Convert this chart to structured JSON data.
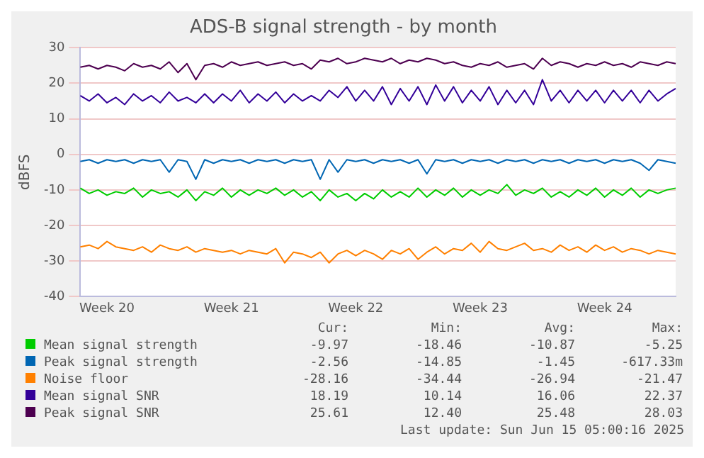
{
  "chart_data": {
    "type": "line",
    "title": "ADS-B signal strength - by month",
    "ylabel": "dBFS",
    "categories": [
      null,
      null,
      null,
      "Week 20",
      null,
      null,
      null,
      null,
      null,
      null,
      null,
      null,
      null,
      null,
      null,
      null,
      null,
      "Week 21",
      null,
      null,
      null,
      null,
      null,
      null,
      null,
      null,
      null,
      null,
      null,
      null,
      null,
      "Week 22",
      null,
      null,
      null,
      null,
      null,
      null,
      null,
      null,
      null,
      null,
      null,
      null,
      null,
      "Week 23",
      null,
      null,
      null,
      null,
      null,
      null,
      null,
      null,
      null,
      null,
      null,
      null,
      null,
      "Week 24",
      null,
      null,
      null,
      null,
      null,
      null,
      null,
      null
    ],
    "ylim": [
      -40,
      30
    ],
    "yticks": [
      -40,
      -30,
      -20,
      -10,
      0,
      10,
      20,
      30
    ],
    "grid": "y",
    "legend": "bottom",
    "marker": "none",
    "line_style": "solid",
    "series": [
      {
        "name": "Mean signal strength",
        "color": "#00cc00",
        "values": [
          -9.5,
          -11,
          -10,
          -11.5,
          -10.5,
          -11,
          -9.5,
          -12,
          -10,
          -11,
          -10.5,
          -12,
          -10,
          -13,
          -10.5,
          -11.5,
          -9.5,
          -12,
          -10,
          -11.5,
          -10,
          -11,
          -9.5,
          -11.5,
          -10,
          -12,
          -10.5,
          -13,
          -10,
          -12,
          -11,
          -13,
          -11,
          -12.5,
          -10,
          -12,
          -10.5,
          -12,
          -9.5,
          -12,
          -10,
          -11.5,
          -9.5,
          -12,
          -10,
          -11.5,
          -10,
          -11,
          -8.5,
          -11.5,
          -10,
          -11,
          -9.5,
          -12,
          -10.5,
          -12,
          -10,
          -11.5,
          -9.5,
          -12,
          -10,
          -11.5,
          -9.5,
          -12,
          -10,
          -11,
          -10,
          -9.5
        ]
      },
      {
        "name": "Peak signal strength",
        "color": "#0066b3",
        "values": [
          -2,
          -1.5,
          -2.5,
          -1.5,
          -2,
          -1.5,
          -2.5,
          -1.5,
          -2,
          -1.5,
          -5,
          -1.5,
          -2,
          -7,
          -1.5,
          -2.5,
          -1.5,
          -2,
          -1.5,
          -2.5,
          -1.5,
          -2,
          -1.5,
          -2.5,
          -1.5,
          -2,
          -1.5,
          -7,
          -1.5,
          -5,
          -1.5,
          -2,
          -1.5,
          -2.5,
          -1.5,
          -2,
          -1.5,
          -2.5,
          -1.5,
          -5.5,
          -1.5,
          -2,
          -1.5,
          -2.5,
          -1.5,
          -2,
          -1.5,
          -2.5,
          -1.5,
          -2,
          -1.5,
          -2.5,
          -1.5,
          -2,
          -1.5,
          -2.5,
          -1.5,
          -2,
          -1.5,
          -2.5,
          -1.5,
          -2,
          -1.5,
          -2.5,
          -4.5,
          -1.5,
          -2,
          -2.5
        ]
      },
      {
        "name": "Noise floor",
        "color": "#ff8000",
        "values": [
          -26,
          -25.5,
          -26.5,
          -24.5,
          -26,
          -26.5,
          -27,
          -26,
          -27.5,
          -25.5,
          -26.5,
          -27,
          -26,
          -27.5,
          -26.5,
          -27,
          -27.5,
          -27,
          -28,
          -27,
          -27.5,
          -28,
          -26.5,
          -30.5,
          -27.5,
          -28,
          -29,
          -27.5,
          -30.5,
          -28,
          -27,
          -28.5,
          -27,
          -28,
          -29.5,
          -27,
          -28,
          -26.5,
          -29.5,
          -27.5,
          -26,
          -28,
          -26.5,
          -27,
          -25,
          -27.5,
          -24.5,
          -26.5,
          -27,
          -26,
          -25,
          -27,
          -26.5,
          -27.5,
          -25.5,
          -27,
          -26,
          -27.5,
          -25.5,
          -27,
          -26,
          -27.5,
          -26.5,
          -27,
          -28,
          -27,
          -27.5,
          -28
        ]
      },
      {
        "name": "Mean signal SNR",
        "color": "#330099",
        "values": [
          16.5,
          15,
          17,
          14.5,
          16,
          14,
          17,
          15,
          16.5,
          14.5,
          17.5,
          15,
          16,
          14.5,
          17,
          14.5,
          17,
          15,
          18,
          14.5,
          17,
          15,
          17.5,
          14.5,
          17,
          15,
          16.5,
          15,
          18,
          16,
          19,
          15,
          18,
          15,
          19,
          14,
          18.5,
          15,
          19,
          14,
          19.5,
          15,
          19,
          14.5,
          18,
          15,
          19,
          14,
          18,
          14.5,
          18,
          14,
          21,
          15,
          18,
          14.5,
          18,
          15,
          18,
          14.5,
          18,
          15,
          18,
          14.5,
          18,
          15,
          17,
          18.5
        ]
      },
      {
        "name": "Peak signal SNR",
        "color": "#4d0050",
        "values": [
          24.5,
          25,
          24,
          25,
          24.5,
          23.5,
          25.5,
          24.5,
          25,
          24,
          26,
          23,
          25.5,
          21,
          25,
          25.5,
          24.5,
          26,
          25,
          25.5,
          26,
          25,
          25.5,
          26,
          25,
          25.5,
          24,
          26.5,
          26,
          27,
          25.5,
          26,
          27,
          26.5,
          26,
          27,
          25.5,
          26.5,
          26,
          27,
          26.5,
          25.5,
          26,
          25,
          24.5,
          25.5,
          25,
          26,
          24.5,
          25,
          25.5,
          24,
          27,
          25,
          26,
          25.5,
          24.5,
          25.5,
          25,
          26,
          25,
          25.5,
          24.5,
          26,
          25.5,
          25,
          26,
          25.5
        ]
      }
    ],
    "annotations": [
      "Cur:",
      "Min:",
      "Avg:",
      "Max:",
      "-9.97",
      "-18.46",
      "-10.87",
      "-5.25",
      "-2.56",
      "-14.85",
      "-1.45",
      "-617.33m",
      "-28.16",
      "-34.44",
      "-26.94",
      "-21.47",
      "18.19",
      "10.14",
      "16.06",
      "22.37",
      "25.61",
      "12.40",
      "25.48",
      "28.03",
      "Last update: Sun Jun 15 05:00:16 2025"
    ]
  }
}
